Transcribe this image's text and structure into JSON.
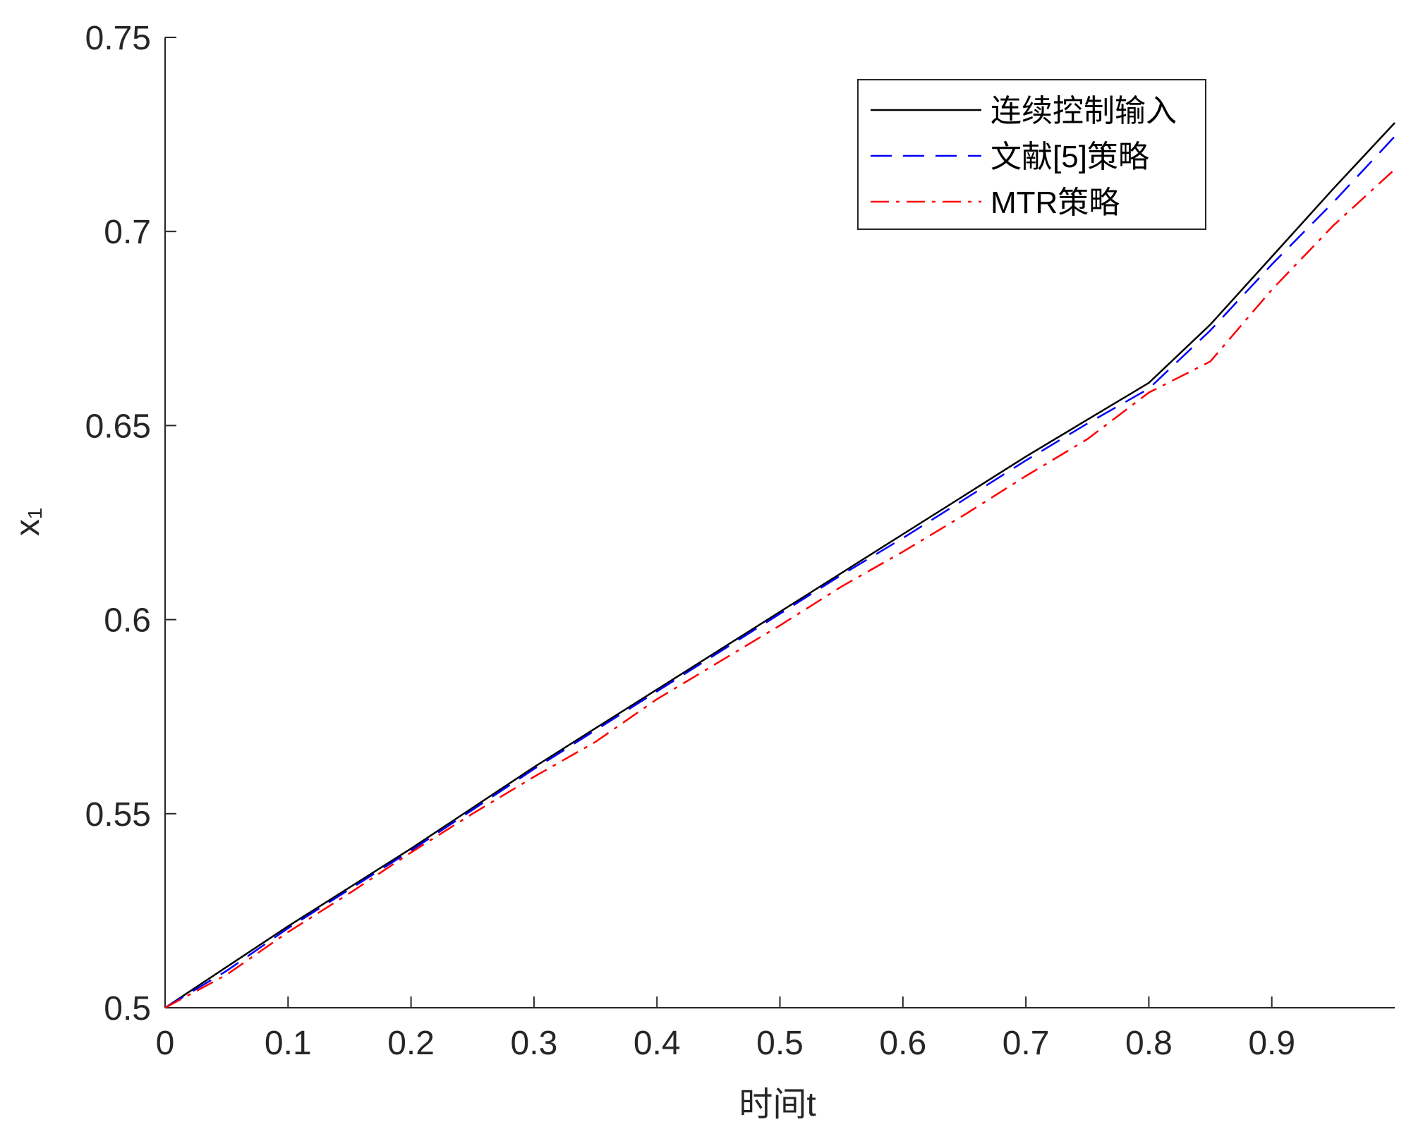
{
  "chart_data": {
    "type": "line",
    "x_label": "时间t",
    "y_label": "x₁",
    "x": [
      0,
      0.05,
      0.1,
      0.15,
      0.2,
      0.25,
      0.3,
      0.35,
      0.4,
      0.45,
      0.5,
      0.55,
      0.6,
      0.65,
      0.7,
      0.75,
      0.8,
      0.85,
      0.9,
      0.95,
      1.0
    ],
    "series": [
      {
        "name": "连续控制输入",
        "color": "#000000",
        "style": "solid",
        "values": [
          0.5,
          0.5105,
          0.521,
          0.531,
          0.541,
          0.5515,
          0.562,
          0.572,
          0.582,
          0.592,
          0.602,
          0.612,
          0.622,
          0.632,
          0.642,
          0.6515,
          0.661,
          0.676,
          0.6935,
          0.711,
          0.728
        ]
      },
      {
        "name": "文献[5]策略",
        "color": "#0000ff",
        "style": "dashed",
        "values": [
          0.5,
          0.5095,
          0.5205,
          0.5305,
          0.5405,
          0.551,
          0.5615,
          0.5715,
          0.5815,
          0.5915,
          0.6015,
          0.6115,
          0.621,
          0.631,
          0.641,
          0.6505,
          0.6595,
          0.6745,
          0.6915,
          0.7075,
          0.7245
        ]
      },
      {
        "name": "MTR策略",
        "color": "#ff0000",
        "style": "dashdot",
        "values": [
          0.5,
          0.5085,
          0.5195,
          0.5295,
          0.54,
          0.55,
          0.5595,
          0.5685,
          0.5795,
          0.589,
          0.5985,
          0.6085,
          0.6175,
          0.627,
          0.637,
          0.6465,
          0.6585,
          0.6665,
          0.685,
          0.7015,
          0.716
        ]
      }
    ],
    "xlim": [
      0,
      1
    ],
    "xticks": [
      0,
      0.1,
      0.2,
      0.3,
      0.4,
      0.5,
      0.6,
      0.7,
      0.8,
      0.9
    ],
    "ylim": [
      0.5,
      0.75
    ],
    "yticks": [
      0.5,
      0.55,
      0.6,
      0.65,
      0.7,
      0.75
    ],
    "grid": false,
    "legend": "upper right"
  }
}
